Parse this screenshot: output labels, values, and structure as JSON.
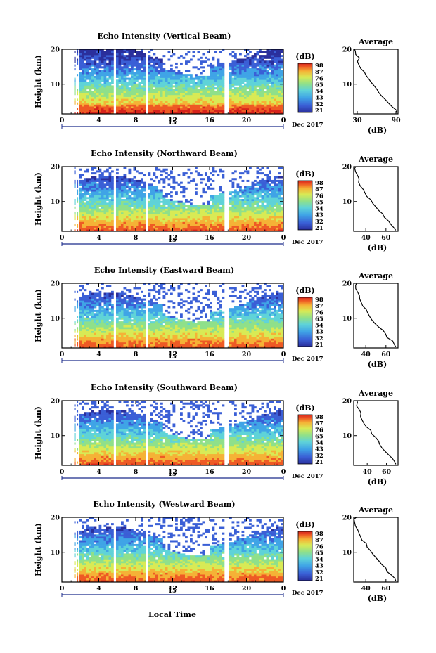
{
  "chart_data": [
    {
      "type": "heatmap",
      "title": "Echo Intensity (Vertical Beam)",
      "ylabel": "Height (km)",
      "xlim": [
        0,
        24
      ],
      "ylim": [
        1.5,
        20
      ],
      "x_ticks": [
        "0",
        "4",
        "8",
        "12",
        "16",
        "20",
        "0"
      ],
      "y_ticks": [
        "20",
        "10"
      ],
      "date_label": "15",
      "month_label": "Dec 2017",
      "colorbar": {
        "label": "(dB)",
        "ticks": [
          "98",
          "87",
          "76",
          "65",
          "54",
          "43",
          "32",
          "21"
        ],
        "range": [
          21,
          98
        ]
      },
      "data_gaps_hours": [
        [
          1.3,
          1.45
        ],
        [
          5.5,
          5.8
        ],
        [
          9.0,
          9.35
        ],
        [
          17.7,
          18.0
        ]
      ],
      "profile": {
        "title": "Average",
        "xlabel": "(dB)",
        "x_ticks": [
          "30",
          "90"
        ],
        "xlim": [
          27,
          93
        ],
        "y_ticks": [
          "20",
          "10"
        ],
        "points": [
          [
            1.8,
            92
          ],
          [
            2.5,
            90
          ],
          [
            3.5,
            85
          ],
          [
            4.5,
            80
          ],
          [
            5.5,
            74
          ],
          [
            6.5,
            69
          ],
          [
            7.5,
            65
          ],
          [
            8.5,
            61
          ],
          [
            9.5,
            57
          ],
          [
            10.5,
            53
          ],
          [
            11.5,
            49
          ],
          [
            12.5,
            45
          ],
          [
            13.5,
            42
          ],
          [
            14.5,
            38
          ],
          [
            15.5,
            35
          ],
          [
            16.5,
            32
          ],
          [
            17.5,
            35
          ],
          [
            18.5,
            31
          ],
          [
            19.5,
            29
          ],
          [
            20,
            28
          ]
        ]
      }
    },
    {
      "type": "heatmap",
      "title": "Echo Intensity (Northward Beam)",
      "ylabel": "Height (km)",
      "xlim": [
        0,
        24
      ],
      "ylim": [
        1.5,
        20
      ],
      "x_ticks": [
        "0",
        "4",
        "8",
        "12",
        "16",
        "20",
        "0"
      ],
      "y_ticks": [
        "20",
        "10"
      ],
      "date_label": "15",
      "month_label": "Dec 2017",
      "colorbar": {
        "label": "(dB)",
        "ticks": [
          "98",
          "87",
          "76",
          "65",
          "54",
          "43",
          "32",
          "21"
        ],
        "range": [
          21,
          98
        ]
      },
      "data_gaps_hours": [
        [
          1.3,
          1.45
        ],
        [
          5.5,
          5.8
        ],
        [
          9.0,
          9.35
        ],
        [
          17.7,
          18.0
        ]
      ],
      "profile": {
        "title": "Average",
        "xlabel": "(dB)",
        "x_ticks": [
          "40",
          "60"
        ],
        "xlim": [
          28,
          72
        ],
        "y_ticks": [
          "20",
          "10"
        ],
        "points": [
          [
            1.8,
            71
          ],
          [
            2.5,
            69
          ],
          [
            3.5,
            66
          ],
          [
            4.5,
            62
          ],
          [
            5.5,
            59
          ],
          [
            6.5,
            56
          ],
          [
            7.5,
            53
          ],
          [
            8.5,
            50
          ],
          [
            9.5,
            47
          ],
          [
            10.5,
            45
          ],
          [
            11.5,
            42
          ],
          [
            12.5,
            40
          ],
          [
            13.5,
            37
          ],
          [
            14.5,
            35
          ],
          [
            15.5,
            33
          ],
          [
            16.5,
            34
          ],
          [
            17.5,
            32
          ],
          [
            18.5,
            31
          ],
          [
            19.5,
            30
          ],
          [
            20,
            30
          ]
        ]
      }
    },
    {
      "type": "heatmap",
      "title": "Echo Intensity (Eastward Beam)",
      "ylabel": "Height (km)",
      "xlim": [
        0,
        24
      ],
      "ylim": [
        1.5,
        20
      ],
      "x_ticks": [
        "0",
        "4",
        "8",
        "12",
        "16",
        "20",
        "0"
      ],
      "y_ticks": [
        "20",
        "10"
      ],
      "date_label": "15",
      "month_label": "Dec 2017",
      "colorbar": {
        "label": "(dB)",
        "ticks": [
          "98",
          "87",
          "76",
          "65",
          "54",
          "43",
          "32",
          "21"
        ],
        "range": [
          21,
          98
        ]
      },
      "data_gaps_hours": [
        [
          1.3,
          1.45
        ],
        [
          5.5,
          5.8
        ],
        [
          9.0,
          9.35
        ],
        [
          17.7,
          18.0
        ]
      ],
      "profile": {
        "title": "Average",
        "xlabel": "(dB)",
        "x_ticks": [
          "40",
          "60"
        ],
        "xlim": [
          28,
          72
        ],
        "y_ticks": [
          "20",
          "10"
        ],
        "points": [
          [
            1.8,
            71
          ],
          [
            2.5,
            69
          ],
          [
            3.5,
            66
          ],
          [
            4.5,
            62
          ],
          [
            5.5,
            59
          ],
          [
            6.5,
            56
          ],
          [
            7.5,
            53
          ],
          [
            8.5,
            50
          ],
          [
            9.5,
            47
          ],
          [
            10.5,
            44
          ],
          [
            11.5,
            42
          ],
          [
            12.5,
            40
          ],
          [
            13.5,
            37
          ],
          [
            14.5,
            36
          ],
          [
            15.5,
            34
          ],
          [
            16.5,
            33
          ],
          [
            17.5,
            33
          ],
          [
            18.5,
            31
          ],
          [
            19.5,
            30
          ],
          [
            20,
            31
          ]
        ]
      }
    },
    {
      "type": "heatmap",
      "title": "Echo Intensity (Southward Beam)",
      "ylabel": "Height (km)",
      "xlim": [
        0,
        24
      ],
      "ylim": [
        1.5,
        20
      ],
      "x_ticks": [
        "0",
        "4",
        "8",
        "12",
        "16",
        "20",
        "0"
      ],
      "y_ticks": [
        "20",
        "10"
      ],
      "date_label": "15",
      "month_label": "Dec 2017",
      "colorbar": {
        "label": "(dB)",
        "ticks": [
          "98",
          "87",
          "76",
          "65",
          "54",
          "43",
          "32",
          "21"
        ],
        "range": [
          21,
          98
        ]
      },
      "data_gaps_hours": [
        [
          1.3,
          1.45
        ],
        [
          5.5,
          5.8
        ],
        [
          9.0,
          9.35
        ],
        [
          17.7,
          18.0
        ]
      ],
      "profile": {
        "title": "Average",
        "xlabel": "(dB)",
        "x_ticks": [
          "40",
          "60"
        ],
        "xlim": [
          26,
          72
        ],
        "y_ticks": [
          "20",
          "10"
        ],
        "points": [
          [
            1.8,
            71
          ],
          [
            2.5,
            69
          ],
          [
            3.5,
            66
          ],
          [
            4.5,
            62
          ],
          [
            5.5,
            59
          ],
          [
            6.5,
            56
          ],
          [
            7.5,
            53
          ],
          [
            8.5,
            51
          ],
          [
            9.5,
            48
          ],
          [
            10.5,
            45
          ],
          [
            11.5,
            43
          ],
          [
            12.5,
            40
          ],
          [
            13.5,
            37
          ],
          [
            14.5,
            35
          ],
          [
            15.5,
            33
          ],
          [
            16.5,
            34
          ],
          [
            17.5,
            31
          ],
          [
            18.5,
            30
          ],
          [
            19.5,
            29
          ],
          [
            20,
            29
          ]
        ]
      }
    },
    {
      "type": "heatmap",
      "title": "Echo Intensity (Westward Beam)",
      "ylabel": "Height (km)",
      "xlim": [
        0,
        24
      ],
      "ylim": [
        1.5,
        20
      ],
      "x_ticks": [
        "0",
        "4",
        "8",
        "12",
        "16",
        "20",
        "0"
      ],
      "y_ticks": [
        "20",
        "10"
      ],
      "date_label": "15",
      "month_label": "Dec 2017",
      "colorbar": {
        "label": "(dB)",
        "ticks": [
          "98",
          "87",
          "76",
          "65",
          "54",
          "43",
          "32",
          "21"
        ],
        "range": [
          21,
          98
        ]
      },
      "data_gaps_hours": [
        [
          1.3,
          1.45
        ],
        [
          5.5,
          5.8
        ],
        [
          9.0,
          9.35
        ],
        [
          17.7,
          18.0
        ]
      ],
      "profile": {
        "title": "Average",
        "xlabel": "(dB)",
        "x_ticks": [
          "40",
          "60"
        ],
        "xlim": [
          28,
          72
        ],
        "y_ticks": [
          "20",
          "10"
        ],
        "points": [
          [
            1.8,
            71
          ],
          [
            2.5,
            69
          ],
          [
            3.5,
            66
          ],
          [
            4.5,
            62
          ],
          [
            5.5,
            59
          ],
          [
            6.5,
            56
          ],
          [
            7.5,
            53
          ],
          [
            8.5,
            50
          ],
          [
            9.5,
            47
          ],
          [
            10.5,
            45
          ],
          [
            11.5,
            42
          ],
          [
            12.5,
            40
          ],
          [
            13.5,
            37
          ],
          [
            14.5,
            35
          ],
          [
            15.5,
            33
          ],
          [
            16.5,
            31
          ],
          [
            17.5,
            30
          ],
          [
            18.5,
            30
          ],
          [
            19.5,
            29
          ],
          [
            20,
            30
          ]
        ]
      }
    }
  ],
  "bottom_xlabel": "Local Time",
  "colorscale": [
    "#2a2f9c",
    "#3a5fd6",
    "#3fa4e6",
    "#5fd3d8",
    "#8fe08a",
    "#d8ea55",
    "#f5b236",
    "#ee5a24",
    "#d6231b"
  ]
}
